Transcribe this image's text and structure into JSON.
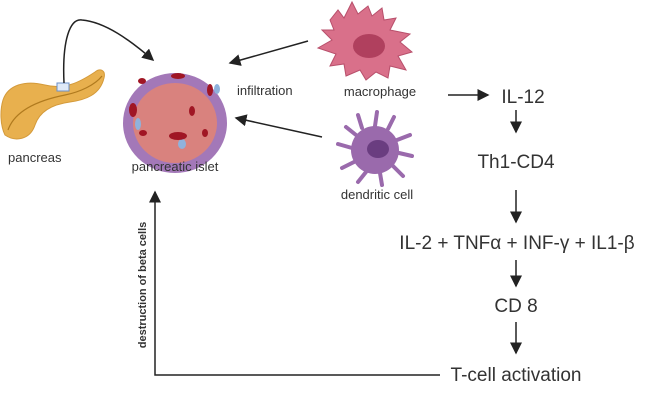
{
  "labels": {
    "pancreas": "pancreas",
    "islet": "pancreatic islet",
    "infiltration": "infiltration",
    "macrophage": "macrophage",
    "dendritic": "dendritic cell",
    "il12": "IL-12",
    "th1cd4": "Th1-CD4",
    "cytokines": "IL-2 + TNFα + INF-γ + IL1-β",
    "cd8": "CD 8",
    "tcell": "T-cell activation",
    "destruction": "destruction of beta cells"
  },
  "colors": {
    "pancreas": "#e8b04e",
    "islet_core": "#d9827e",
    "islet_rim": "#a378b8",
    "macrophage": "#d9708a",
    "dendritic": "#9a6aac",
    "arrow": "#222222"
  }
}
